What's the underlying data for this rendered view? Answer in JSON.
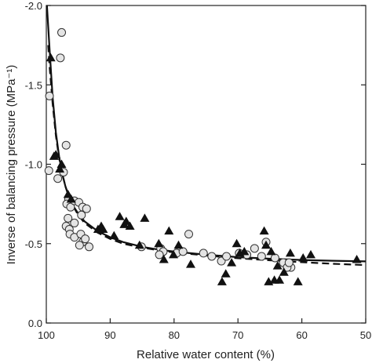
{
  "chart_data": {
    "type": "scatter",
    "title": "",
    "xlabel": "Relative water content (%)",
    "ylabel": "Inverse of balancing pressure (MPa⁻¹)",
    "xlim": [
      100,
      50
    ],
    "ylim": [
      0.0,
      -2.0
    ],
    "x_reversed": true,
    "y_reversed": true,
    "xticks": [
      100,
      90,
      80,
      70,
      60,
      50
    ],
    "xtick_labels": [
      "100",
      "90",
      "80",
      "70",
      "60",
      "50"
    ],
    "yticks": [
      0.0,
      -0.5,
      -1.0,
      -1.5,
      -2.0
    ],
    "ytick_labels": [
      "0.0",
      "-0.5",
      "-1.0",
      "-1.5",
      "-2.0"
    ],
    "grid": false,
    "legend": "none",
    "series": [
      {
        "marker": "circle-open",
        "points": [
          [
            97.6,
            -1.83
          ],
          [
            97.8,
            -1.67
          ],
          [
            99.5,
            -1.43
          ],
          [
            96.9,
            -1.12
          ],
          [
            99.6,
            -0.96
          ],
          [
            98.2,
            -0.91
          ],
          [
            97.3,
            -0.95
          ],
          [
            96.5,
            -0.78
          ],
          [
            96.8,
            -0.75
          ],
          [
            96.2,
            -0.73
          ],
          [
            95.6,
            -0.77
          ],
          [
            94.9,
            -0.76
          ],
          [
            94.3,
            -0.73
          ],
          [
            93.7,
            -0.72
          ],
          [
            96.6,
            -0.66
          ],
          [
            96.9,
            -0.61
          ],
          [
            96.4,
            -0.59
          ],
          [
            95.6,
            -0.63
          ],
          [
            96.3,
            -0.56
          ],
          [
            95.6,
            -0.54
          ],
          [
            94.6,
            -0.56
          ],
          [
            94.3,
            -0.51
          ],
          [
            93.9,
            -0.53
          ],
          [
            93.3,
            -0.48
          ],
          [
            94.8,
            -0.49
          ],
          [
            94.5,
            -0.68
          ],
          [
            85.1,
            -0.48
          ],
          [
            82.1,
            -0.47
          ],
          [
            81.7,
            -0.45
          ],
          [
            82.3,
            -0.43
          ],
          [
            79.6,
            -0.44
          ],
          [
            78.6,
            -0.45
          ],
          [
            77.7,
            -0.56
          ],
          [
            75.4,
            -0.44
          ],
          [
            74.1,
            -0.42
          ],
          [
            72.6,
            -0.39
          ],
          [
            71.8,
            -0.42
          ],
          [
            69.8,
            -0.44
          ],
          [
            68.6,
            -0.43
          ],
          [
            67.4,
            -0.47
          ],
          [
            66.3,
            -0.42
          ],
          [
            65.6,
            -0.51
          ],
          [
            64.2,
            -0.41
          ],
          [
            62.9,
            -0.38
          ],
          [
            61.7,
            -0.35
          ],
          [
            62.3,
            -0.35
          ],
          [
            62.0,
            -0.38
          ]
        ]
      },
      {
        "marker": "triangle-filled",
        "points": [
          [
            99.3,
            -1.67
          ],
          [
            98.5,
            -1.06
          ],
          [
            98.8,
            -1.05
          ],
          [
            97.6,
            -1.0
          ],
          [
            97.9,
            -0.97
          ],
          [
            96.6,
            -0.81
          ],
          [
            96.1,
            -0.78
          ],
          [
            91.4,
            -0.61
          ],
          [
            91.1,
            -0.59
          ],
          [
            91.9,
            -0.59
          ],
          [
            89.4,
            -0.55
          ],
          [
            88.5,
            -0.67
          ],
          [
            87.8,
            -0.62
          ],
          [
            87.5,
            -0.64
          ],
          [
            86.9,
            -0.61
          ],
          [
            85.4,
            -0.49
          ],
          [
            84.6,
            -0.66
          ],
          [
            82.4,
            -0.5
          ],
          [
            81.6,
            -0.4
          ],
          [
            80.8,
            -0.58
          ],
          [
            80.1,
            -0.43
          ],
          [
            79.3,
            -0.49
          ],
          [
            77.4,
            -0.37
          ],
          [
            72.5,
            -0.26
          ],
          [
            71.9,
            -0.31
          ],
          [
            71.0,
            -0.38
          ],
          [
            70.2,
            -0.5
          ],
          [
            69.7,
            -0.44
          ],
          [
            69.0,
            -0.45
          ],
          [
            65.9,
            -0.58
          ],
          [
            65.6,
            -0.49
          ],
          [
            65.2,
            -0.26
          ],
          [
            64.8,
            -0.45
          ],
          [
            64.3,
            -0.27
          ],
          [
            63.8,
            -0.36
          ],
          [
            63.5,
            -0.27
          ],
          [
            62.8,
            -0.32
          ],
          [
            61.8,
            -0.44
          ],
          [
            60.6,
            -0.26
          ],
          [
            59.8,
            -0.41
          ],
          [
            58.6,
            -0.43
          ],
          [
            51.4,
            -0.4
          ]
        ]
      }
    ],
    "fit_curves": [
      {
        "style": "solid",
        "x": [
          99.9,
          99.5,
          99,
          98.5,
          98,
          97.5,
          97,
          96.5,
          96,
          95,
          94,
          93,
          92,
          90,
          88,
          85,
          82,
          80,
          75,
          70,
          65,
          60,
          55,
          50
        ],
        "y": [
          -2.0,
          -1.73,
          -1.42,
          -1.2,
          -1.05,
          -0.94,
          -0.86,
          -0.8,
          -0.75,
          -0.69,
          -0.64,
          -0.61,
          -0.58,
          -0.54,
          -0.51,
          -0.48,
          -0.46,
          -0.45,
          -0.43,
          -0.415,
          -0.405,
          -0.397,
          -0.392,
          -0.388
        ]
      },
      {
        "style": "dashed",
        "x": [
          99.7,
          99.5,
          99,
          98.5,
          98,
          97.5,
          97,
          96.5,
          96,
          95,
          94,
          93,
          92,
          90,
          88,
          85,
          82,
          80,
          75,
          70,
          65,
          60,
          55,
          50
        ],
        "y": [
          -1.75,
          -1.62,
          -1.38,
          -1.18,
          -1.04,
          -0.94,
          -0.86,
          -0.8,
          -0.75,
          -0.68,
          -0.63,
          -0.6,
          -0.57,
          -0.53,
          -0.5,
          -0.475,
          -0.455,
          -0.445,
          -0.425,
          -0.408,
          -0.395,
          -0.383,
          -0.373,
          -0.365
        ]
      }
    ]
  }
}
